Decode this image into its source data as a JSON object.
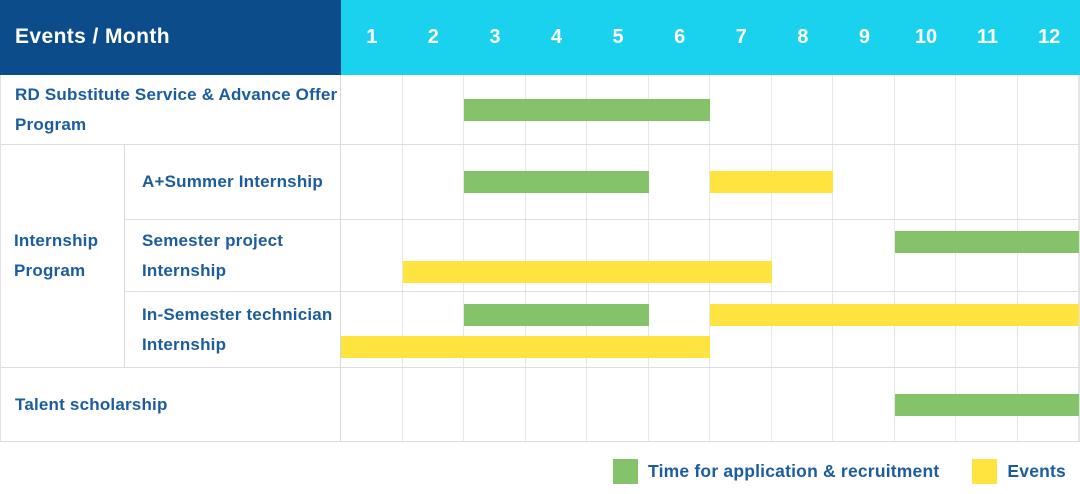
{
  "header": {
    "title": "Events / Month"
  },
  "colors": {
    "header_bg": "#0d4c8b",
    "month_bg": "#1bd2ee",
    "text": "#1b5c9d",
    "application_green": "#85c36a",
    "event_yellow": "#ffe33e"
  },
  "chart_data": {
    "type": "gantt",
    "title": "Events / Month",
    "months": [
      1,
      2,
      3,
      4,
      5,
      6,
      7,
      8,
      9,
      10,
      11,
      12
    ],
    "group_label": "Internship Program",
    "rows": [
      {
        "group": null,
        "label": "RD Substitute Service & Advance Offer Program",
        "bars": [
          {
            "type": "application",
            "start": 3,
            "end": 6,
            "line": "center"
          }
        ]
      },
      {
        "group": "Internship Program",
        "label": "A+Summer Internship",
        "bars": [
          {
            "type": "application",
            "start": 3,
            "end": 5,
            "line": "center"
          },
          {
            "type": "event",
            "start": 7,
            "end": 8,
            "line": "center"
          }
        ]
      },
      {
        "group": "Internship Program",
        "label": "Semester project Internship",
        "bars": [
          {
            "type": "application",
            "start": 10,
            "end": 12,
            "line": "top"
          },
          {
            "type": "event",
            "start": 2,
            "end": 7,
            "line": "bottom"
          }
        ]
      },
      {
        "group": "Internship Program",
        "label": "In-Semester technician Internship",
        "bars": [
          {
            "type": "application",
            "start": 3,
            "end": 5,
            "line": "top"
          },
          {
            "type": "event",
            "start": 7,
            "end": 12,
            "line": "top"
          },
          {
            "type": "event",
            "start": 1,
            "end": 6,
            "line": "bottom"
          }
        ]
      },
      {
        "group": null,
        "label": "Talent scholarship",
        "bars": [
          {
            "type": "application",
            "start": 10,
            "end": 12,
            "line": "center"
          }
        ]
      }
    ],
    "bar_types": {
      "application": {
        "label": "Time for application & recruitment",
        "color": "#85c36a"
      },
      "event": {
        "label": "Events",
        "color": "#ffe33e"
      }
    },
    "legend_position": "bottom-right"
  }
}
